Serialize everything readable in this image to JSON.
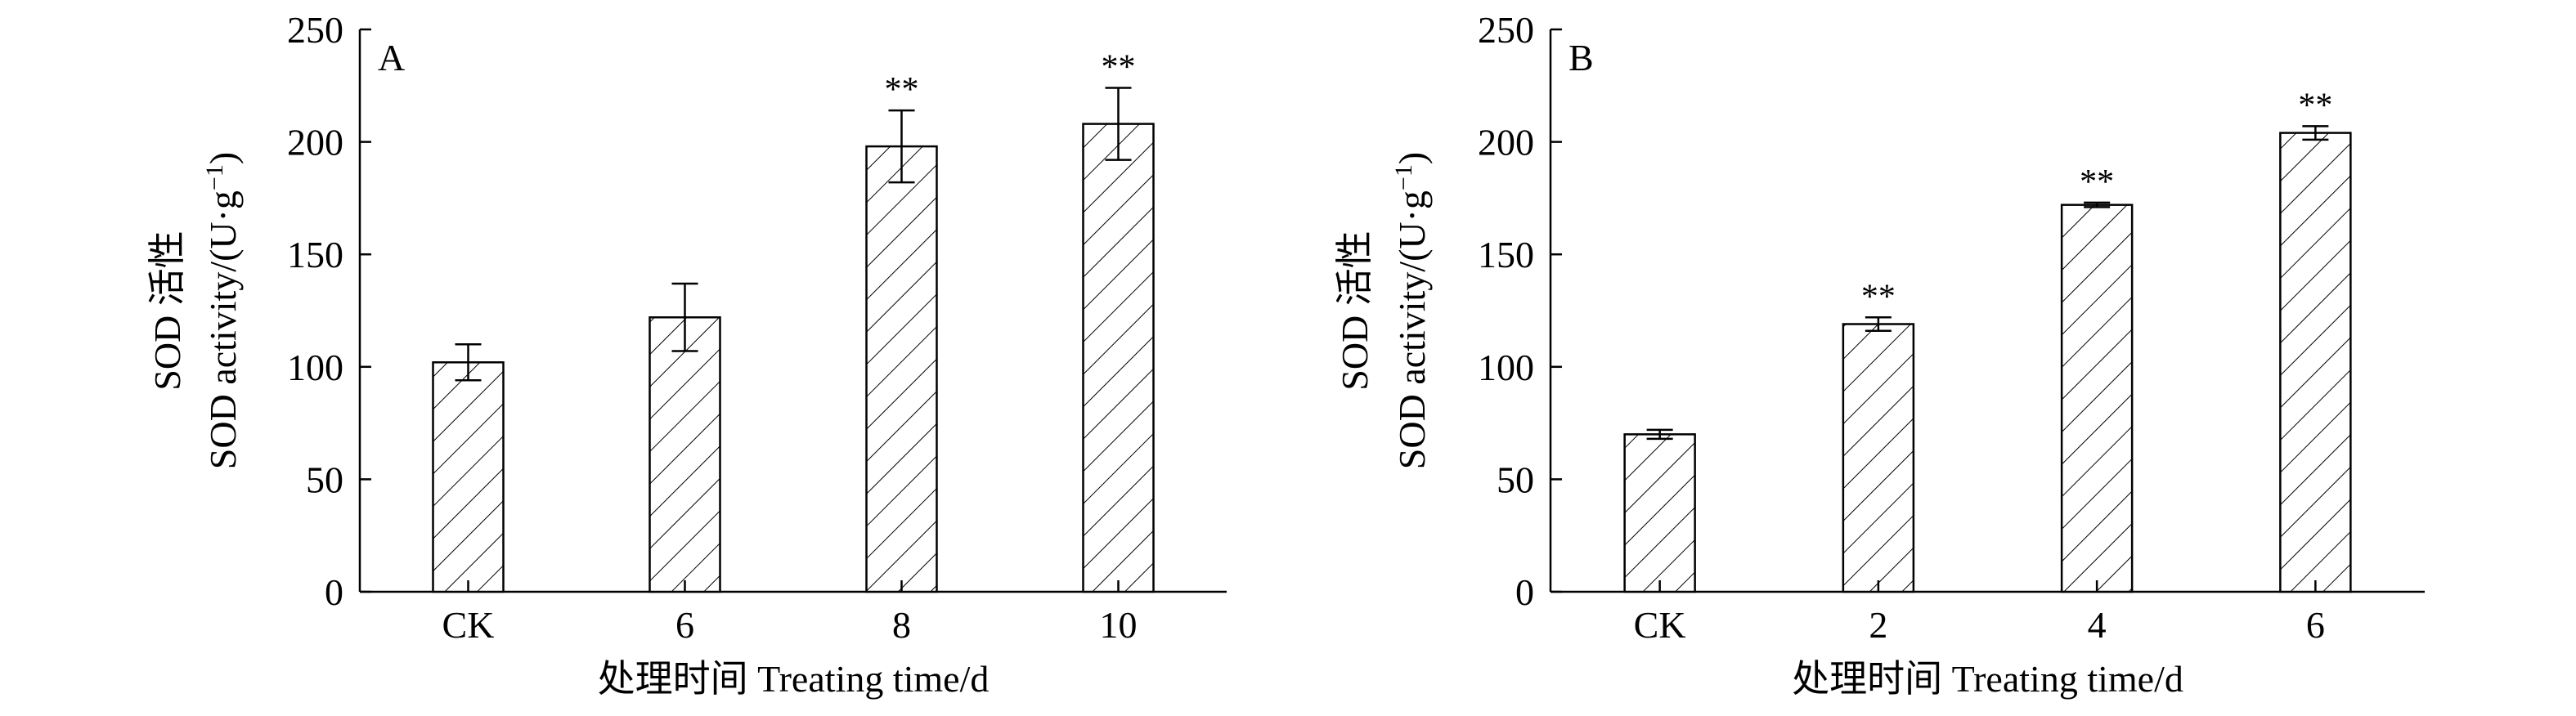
{
  "chart_data": [
    {
      "type": "bar",
      "panel_label": "A",
      "categories": [
        "CK",
        "6",
        "8",
        "10"
      ],
      "values": [
        102,
        122,
        198,
        208
      ],
      "errors": [
        8,
        15,
        16,
        16
      ],
      "significance": [
        "",
        "",
        "**",
        "**"
      ],
      "ylabel_line1": "SOD 活性",
      "ylabel_line2": "SOD activity/(U·g",
      "ylabel_sup": "−1",
      "ylabel_close": ")",
      "xlabel": "处理时间 Treating time/d",
      "ylim": [
        0,
        250
      ],
      "yticks": [
        0,
        50,
        100,
        150,
        200,
        250
      ],
      "grid": false,
      "pattern": "diagonal-hatch"
    },
    {
      "type": "bar",
      "panel_label": "B",
      "categories": [
        "CK",
        "2",
        "4",
        "6"
      ],
      "values": [
        70,
        119,
        172,
        204
      ],
      "errors": [
        2,
        3,
        1,
        3
      ],
      "significance": [
        "",
        "**",
        "**",
        "**"
      ],
      "ylabel_line1": "SOD 活性",
      "ylabel_line2": "SOD activity/(U·g",
      "ylabel_sup": "−1",
      "ylabel_close": ")",
      "xlabel": "处理时间 Treating time/d",
      "ylim": [
        0,
        250
      ],
      "yticks": [
        0,
        50,
        100,
        150,
        200,
        250
      ],
      "grid": false,
      "pattern": "diagonal-hatch"
    }
  ]
}
